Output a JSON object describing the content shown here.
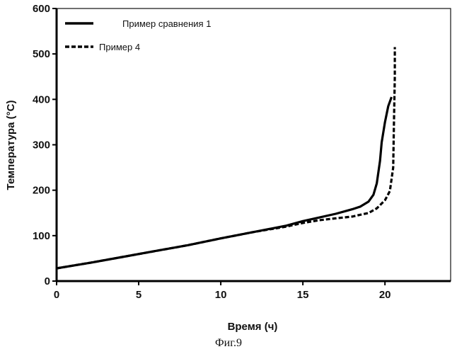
{
  "chart_data": {
    "type": "line",
    "xlabel": "Время (ч)",
    "ylabel": "Температура (°C)",
    "xlim": [
      0,
      24
    ],
    "ylim": [
      0,
      600
    ],
    "xticks": [
      0,
      5,
      10,
      15,
      20
    ],
    "yticks": [
      0,
      100,
      200,
      300,
      400,
      500,
      600
    ],
    "grid": false,
    "legend_position": "top-left",
    "series": [
      {
        "name": "Пример сравнения 1",
        "style": "solid",
        "color": "#000000",
        "x": [
          0,
          2,
          4,
          6,
          8,
          10,
          12,
          14,
          15,
          16,
          17,
          17.5,
          18,
          18.5,
          19,
          19.3,
          19.5,
          19.7,
          19.8,
          20.0,
          20.2,
          20.4
        ],
        "y": [
          28,
          40,
          53,
          66,
          79,
          94,
          108,
          122,
          132,
          140,
          148,
          153,
          158,
          164,
          175,
          190,
          215,
          265,
          305,
          350,
          385,
          405
        ]
      },
      {
        "name": "Пример 4",
        "style": "dashed",
        "color": "#000000",
        "x": [
          0,
          2,
          4,
          6,
          8,
          10,
          12,
          14,
          15,
          16,
          17,
          18,
          19,
          19.5,
          20,
          20.3,
          20.5,
          20.55,
          20.6,
          20.6
        ],
        "y": [
          28,
          40,
          53,
          66,
          79,
          94,
          108,
          120,
          128,
          134,
          138,
          142,
          150,
          160,
          178,
          198,
          250,
          350,
          450,
          515
        ]
      }
    ]
  },
  "caption": "Фиг.9"
}
